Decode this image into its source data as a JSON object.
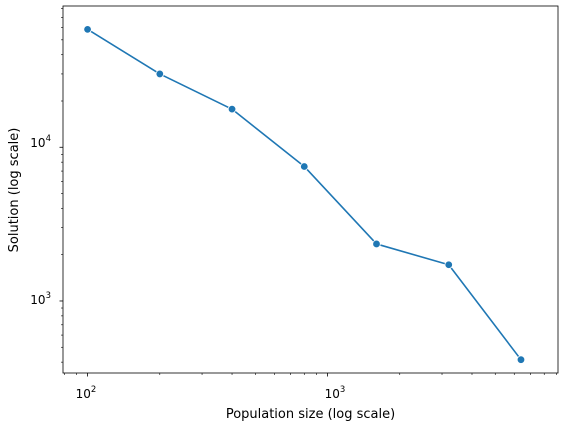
{
  "chart_data": {
    "type": "line",
    "xlabel": "Population size (log scale)",
    "ylabel": "Solution (log scale)",
    "xscale": "log",
    "yscale": "log",
    "xlim": [
      79,
      9130
    ],
    "ylim": [
      340,
      83000
    ],
    "grid": false,
    "marker": "circle",
    "color": "#1f77b4",
    "x_ticks": [
      {
        "base": "10",
        "exp": "2",
        "value": 100
      },
      {
        "base": "10",
        "exp": "3",
        "value": 1000
      }
    ],
    "y_ticks": [
      {
        "base": "10",
        "exp": "3",
        "value": 1000
      },
      {
        "base": "10",
        "exp": "4",
        "value": 10000
      }
    ],
    "series": [
      {
        "x": [
          100,
          200,
          400,
          800,
          1600,
          3200,
          6400
        ],
        "y": [
          58500,
          30000,
          17700,
          7500,
          2350,
          1720,
          415
        ]
      }
    ]
  }
}
